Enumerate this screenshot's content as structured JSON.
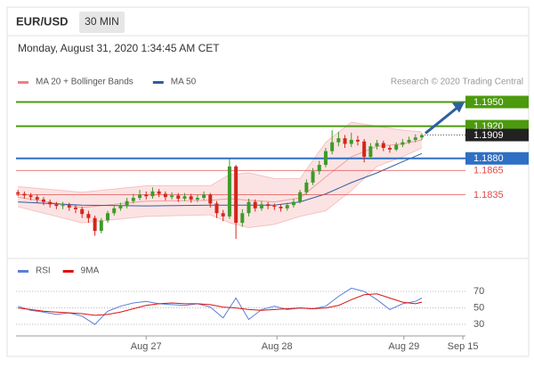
{
  "header": {
    "symbol": "EUR/USD",
    "timeframe": "30 MIN"
  },
  "chart_data": [
    {
      "type": "candlestick",
      "title": "Monday, August 31, 2020 1:34:45 AM CET",
      "annotation": "Research © 2020 Trading Central",
      "colors": {
        "up": "#3f9a2a",
        "down": "#d3261c"
      },
      "candles": {
        "open": [
          1.1838,
          1.1836,
          1.1834,
          1.1832,
          1.1829,
          1.1826,
          1.1823,
          1.1821,
          1.1822,
          1.1819,
          1.1817,
          1.1811,
          1.1806,
          1.179,
          1.1803,
          1.1812,
          1.1818,
          1.1821,
          1.1827,
          1.1831,
          1.1835,
          1.1833,
          1.1839,
          1.1836,
          1.1832,
          1.1834,
          1.183,
          1.1833,
          1.1829,
          1.1831,
          1.1835,
          1.1824,
          1.1812,
          1.1808,
          1.187,
          1.18,
          1.1812,
          1.1826,
          1.1818,
          1.1823,
          1.1821,
          1.182,
          1.1818,
          1.1822,
          1.1826,
          1.1838,
          1.185,
          1.1864,
          1.1872,
          1.1889,
          1.19,
          1.1905,
          1.1898,
          1.1903,
          1.1901,
          1.1882,
          1.1895,
          1.1899,
          1.1893,
          1.1891,
          1.1897,
          1.19,
          1.1903,
          1.1906
        ],
        "high": [
          1.1841,
          1.1839,
          1.1837,
          1.1835,
          1.1832,
          1.1829,
          1.1826,
          1.1826,
          1.1825,
          1.1822,
          1.182,
          1.1815,
          1.1809,
          1.1806,
          1.1815,
          1.1822,
          1.1825,
          1.1831,
          1.1836,
          1.1841,
          1.1839,
          1.1844,
          1.1842,
          1.1839,
          1.1838,
          1.1837,
          1.1837,
          1.1836,
          1.1835,
          1.1839,
          1.1837,
          1.1827,
          1.1816,
          1.188,
          1.1872,
          1.1817,
          1.183,
          1.1829,
          1.1827,
          1.1826,
          1.1824,
          1.1823,
          1.1825,
          1.183,
          1.1841,
          1.1854,
          1.1868,
          1.1877,
          1.1893,
          1.1915,
          1.1913,
          1.1909,
          1.1912,
          1.1908,
          1.1904,
          1.1899,
          1.1903,
          1.1902,
          1.1896,
          1.19,
          1.1904,
          1.1907,
          1.191,
          1.1911
        ],
        "low": [
          1.1833,
          1.183,
          1.1828,
          1.1825,
          1.1822,
          1.1819,
          1.1817,
          1.1817,
          1.1815,
          1.1812,
          1.1806,
          1.18,
          1.1784,
          1.1787,
          1.18,
          1.1809,
          1.1815,
          1.1818,
          1.1824,
          1.1828,
          1.1829,
          1.183,
          1.1832,
          1.1828,
          1.1829,
          1.1826,
          1.1827,
          1.1825,
          1.1826,
          1.1828,
          1.1819,
          1.1806,
          1.1802,
          1.1805,
          1.178,
          1.1795,
          1.1808,
          1.1814,
          1.1815,
          1.1817,
          1.1816,
          1.1814,
          1.1815,
          1.1819,
          1.1824,
          1.1835,
          1.1847,
          1.186,
          1.1869,
          1.1885,
          1.1895,
          1.1893,
          1.1894,
          1.1896,
          1.1875,
          1.1879,
          1.1891,
          1.1889,
          1.1887,
          1.1889,
          1.1894,
          1.1898,
          1.19,
          1.1903
        ],
        "close": [
          1.1836,
          1.1834,
          1.1832,
          1.1829,
          1.1826,
          1.1823,
          1.1821,
          1.1822,
          1.1819,
          1.1817,
          1.1811,
          1.1806,
          1.179,
          1.1803,
          1.1812,
          1.1818,
          1.1821,
          1.1827,
          1.1831,
          1.1835,
          1.1833,
          1.1839,
          1.1836,
          1.1832,
          1.1834,
          1.183,
          1.1833,
          1.1829,
          1.1831,
          1.1835,
          1.1824,
          1.1812,
          1.1808,
          1.187,
          1.18,
          1.1812,
          1.1826,
          1.1818,
          1.1823,
          1.1821,
          1.182,
          1.1818,
          1.1822,
          1.1826,
          1.1838,
          1.185,
          1.1864,
          1.1872,
          1.1889,
          1.19,
          1.1905,
          1.1898,
          1.1903,
          1.1901,
          1.1882,
          1.1895,
          1.1899,
          1.1893,
          1.1891,
          1.1897,
          1.19,
          1.1903,
          1.1906,
          1.1909
        ]
      },
      "series": [
        {
          "name": "MA 20 + Bollinger Bands",
          "color": "#f08080",
          "x": [
            0,
            10,
            20,
            30,
            33,
            36,
            40,
            44,
            48,
            52,
            56,
            60,
            63
          ],
          "values": [
            1.1832,
            1.1819,
            1.1827,
            1.1828,
            1.183,
            1.1828,
            1.1826,
            1.1831,
            1.1857,
            1.1882,
            1.1895,
            1.1898,
            1.1903
          ],
          "upper": [
            1.1845,
            1.1838,
            1.1846,
            1.1846,
            1.186,
            1.1862,
            1.1855,
            1.1855,
            1.19,
            1.1925,
            1.192,
            1.1915,
            1.1913
          ],
          "lower": [
            1.182,
            1.18,
            1.1808,
            1.181,
            1.18,
            1.1794,
            1.1798,
            1.1808,
            1.1815,
            1.184,
            1.187,
            1.1882,
            1.1893
          ]
        },
        {
          "name": "MA 50",
          "color": "#2f5f9e",
          "x": [
            0,
            10,
            20,
            30,
            40,
            44,
            48,
            52,
            56,
            60,
            63
          ],
          "values": [
            1.1826,
            1.1822,
            1.1821,
            1.1822,
            1.1822,
            1.1826,
            1.1836,
            1.185,
            1.1862,
            1.1876,
            1.1886
          ]
        }
      ],
      "levels": [
        {
          "value": 1.195,
          "label": "1.1950",
          "color": "#4c9a0e",
          "line": "solid",
          "label_box": true
        },
        {
          "value": 1.192,
          "label": "1.1920",
          "color": "#4c9a0e",
          "line": "solid",
          "label_box": true
        },
        {
          "value": 1.1909,
          "label": "1.1909",
          "color": "#222222",
          "line": "dotted",
          "label_box": true
        },
        {
          "value": 1.188,
          "label": "1.1880",
          "color": "#2f6fc4",
          "line": "solid",
          "label_box": true
        },
        {
          "value": 1.1865,
          "label": "1.1865",
          "color": "#e04848",
          "line": "solid",
          "label_box": false
        },
        {
          "value": 1.1835,
          "label": "1.1835",
          "color": "#e04848",
          "line": "solid",
          "label_box": false
        }
      ],
      "xlim": [
        -0.3,
        69.8
      ],
      "ylim": [
        1.1778,
        1.1966
      ]
    },
    {
      "type": "line",
      "series": [
        {
          "name": "RSI",
          "color": "#5b7fd6",
          "x": [
            0,
            2,
            4,
            6,
            8,
            10,
            12,
            14,
            16,
            18,
            20,
            22,
            24,
            26,
            28,
            30,
            32,
            34,
            36,
            38,
            40,
            42,
            44,
            46,
            48,
            50,
            52,
            54,
            56,
            58,
            60,
            62,
            63
          ],
          "values": [
            52,
            47,
            45,
            42,
            44,
            40,
            30,
            46,
            52,
            56,
            58,
            55,
            54,
            53,
            55,
            51,
            38,
            62,
            36,
            48,
            52,
            48,
            50,
            49,
            52,
            64,
            74,
            70,
            60,
            48,
            55,
            58,
            62
          ]
        },
        {
          "name": "9MA",
          "color": "#dd1111",
          "x": [
            0,
            2,
            4,
            6,
            8,
            10,
            12,
            14,
            16,
            18,
            20,
            22,
            24,
            26,
            28,
            30,
            32,
            34,
            36,
            38,
            40,
            42,
            44,
            46,
            48,
            50,
            52,
            54,
            56,
            58,
            60,
            62,
            63
          ],
          "values": [
            50,
            48,
            46,
            45,
            44,
            43,
            41,
            42,
            45,
            49,
            53,
            55,
            56,
            55,
            55,
            54,
            51,
            50,
            48,
            47,
            48,
            49,
            50,
            49,
            50,
            53,
            60,
            66,
            67,
            62,
            57,
            55,
            57
          ]
        }
      ],
      "xlim": [
        -0.3,
        69.8
      ],
      "xticks": [
        {
          "value": 20,
          "label": "Aug 27"
        },
        {
          "value": 40.4,
          "label": "Aug 28"
        },
        {
          "value": 60.2,
          "label": "Aug 29"
        },
        {
          "value": 69.4,
          "label": "Sep 15"
        }
      ],
      "ylim": [
        20,
        80
      ],
      "yticks": [
        30,
        50,
        70
      ]
    }
  ]
}
